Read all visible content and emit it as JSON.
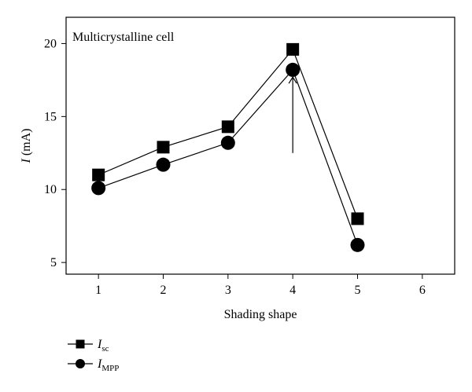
{
  "chart_data": {
    "type": "line",
    "annotation": "Multicrystalline cell",
    "xlabel": "Shading shape",
    "ylabel_main": "I",
    "ylabel_unit": " (mA)",
    "xlim": [
      0.5,
      6.5
    ],
    "ylim": [
      4.2,
      21.8
    ],
    "x_ticks": [
      1,
      2,
      3,
      4,
      5,
      6
    ],
    "y_ticks": [
      5,
      10,
      15,
      20
    ],
    "grid": false,
    "legend_position": "bottom-left, outside plot",
    "arrow": {
      "x": 4,
      "y_from": 12.5,
      "y_to": 17.7
    },
    "x": [
      1,
      2,
      3,
      4,
      5
    ],
    "series": [
      {
        "name_main": "I",
        "name_sub": "sc",
        "marker": "square",
        "values": [
          11.0,
          12.9,
          14.3,
          19.6,
          8.0
        ]
      },
      {
        "name_main": "I",
        "name_sub": "MPP",
        "marker": "circle",
        "values": [
          10.1,
          11.7,
          13.2,
          18.2,
          6.2
        ]
      }
    ]
  }
}
